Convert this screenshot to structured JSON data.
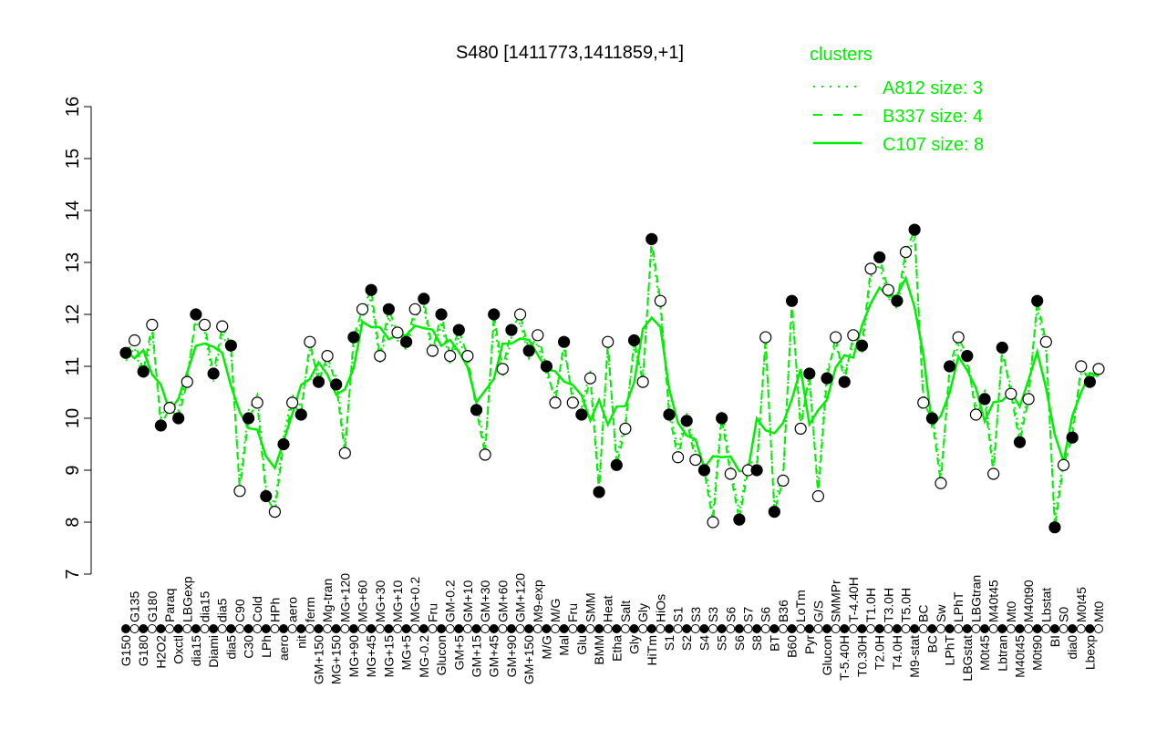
{
  "chart_data": {
    "type": "line",
    "title": "S480 [1411773,1411859,+1]",
    "xlabel": "",
    "ylabel": "",
    "ylim": [
      7,
      16
    ],
    "yticks": [
      7,
      8,
      9,
      10,
      11,
      12,
      13,
      14,
      15,
      16
    ],
    "grid": false,
    "legend": {
      "title": "clusters",
      "placement": "top-right",
      "entries": [
        {
          "label": "A812 size: 3",
          "style": "dotted"
        },
        {
          "label": "B337 size: 4",
          "style": "dashed"
        },
        {
          "label": "C107 size: 8",
          "style": "solid"
        }
      ]
    },
    "colors": {
      "lines": "#00ee00",
      "points": "#000000",
      "legend": "#00ee00"
    },
    "categories": [
      "G150",
      "G135",
      "G180",
      "G180",
      "H2O2",
      "Paraq",
      "Oxctl",
      "LBGexp",
      "dia15",
      "dia15",
      "Diami",
      "dia5",
      "dia5",
      "C90",
      "C30",
      "Cold",
      "LPh",
      "HPh",
      "aero",
      "aero",
      "nit",
      "ferm",
      "GM+150",
      "Mg-tran",
      "MG+150",
      "MG+120",
      "MG+90",
      "MG+60",
      "MG+45",
      "MG+30",
      "MG+15",
      "MG+10",
      "MG+5",
      "MG+0.2",
      "MG-0.2",
      "Fru",
      "Glucon",
      "GM-0.2",
      "GM+5",
      "GM+10",
      "GM+15",
      "GM+30",
      "GM+45",
      "GM+60",
      "GM+90",
      "GM+120",
      "GM+150",
      "M9-exp",
      "M/G",
      "M/G",
      "Mal",
      "Fru",
      "Glu",
      "SMM",
      "BMM",
      "Heat",
      "Etha",
      "Salt",
      "Gly",
      "Gly",
      "HiTm",
      "HiOs",
      "S1",
      "S1",
      "S2",
      "S3",
      "S4",
      "S3",
      "S5",
      "S6",
      "S6",
      "S7",
      "S8",
      "S6",
      "BT",
      "B36",
      "B60",
      "LoTm",
      "Pyr",
      "G/S",
      "Glucon",
      "SMMPr",
      "T-5.40H",
      "T-4.40H",
      "T0.30H",
      "T1.0H",
      "T2.0H",
      "T3.0H",
      "T4.0H",
      "T5.0H",
      "M9-stat",
      "BC",
      "BC",
      "Sw",
      "LPhT",
      "LPhT",
      "LBGstat",
      "LBGtran",
      "M0t45",
      "M40t45",
      "Lbtran",
      "Mt0",
      "M40t45",
      "M40t90",
      "M0t90",
      "Lbstat",
      "BI",
      "S0",
      "dia0",
      "M0t45",
      "Lbexp",
      "Mt0"
    ],
    "values": [
      11.26,
      11.5,
      10.9,
      11.8,
      9.86,
      10.2,
      10.0,
      10.7,
      12.0,
      11.8,
      10.86,
      11.77,
      11.4,
      8.6,
      10.0,
      10.3,
      8.5,
      8.2,
      9.5,
      10.3,
      10.07,
      11.47,
      10.7,
      11.2,
      10.65,
      9.33,
      11.56,
      12.1,
      12.47,
      11.2,
      12.1,
      11.65,
      11.47,
      12.1,
      12.3,
      11.3,
      12.0,
      11.2,
      11.7,
      11.2,
      10.16,
      9.3,
      12.0,
      10.95,
      11.7,
      12.0,
      11.3,
      11.6,
      11.0,
      10.3,
      11.47,
      10.3,
      10.07,
      10.77,
      8.58,
      11.47,
      9.1,
      9.8,
      11.5,
      10.7,
      13.45,
      12.26,
      10.07,
      9.25,
      9.95,
      9.2,
      9.0,
      8.0,
      10.0,
      8.93,
      8.05,
      9.0,
      9.0,
      11.56,
      8.2,
      8.8,
      12.26,
      9.8,
      10.86,
      8.5,
      10.77,
      11.56,
      10.7,
      11.6,
      11.4,
      12.88,
      13.1,
      12.47,
      12.26,
      13.2,
      13.63,
      10.3,
      10.0,
      8.75,
      11.0,
      11.56,
      11.2,
      10.07,
      10.37,
      8.93,
      11.36,
      10.47,
      9.54,
      10.37,
      12.26,
      11.47,
      7.9,
      9.1,
      9.63,
      11.0,
      10.7,
      10.95
    ]
  }
}
